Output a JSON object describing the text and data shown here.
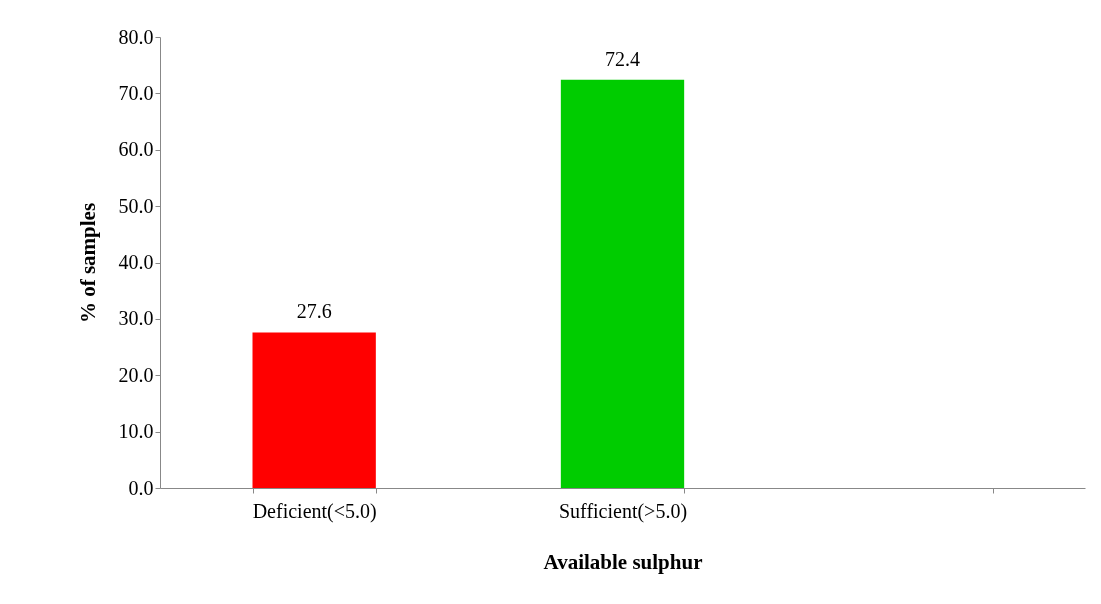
{
  "chart_data": {
    "type": "bar",
    "categories": [
      "Deficient(<5.0)",
      "Sufficient(>5.0)",
      null
    ],
    "values": [
      27.6,
      72.4,
      null
    ],
    "colors": [
      "#ff0000",
      "#00cc00",
      null
    ],
    "xlabel": "Available sulphur",
    "ylabel": "% of samples",
    "ylim": [
      0,
      80
    ],
    "yticks": [
      {
        "value": 0,
        "label": "0.0"
      },
      {
        "value": 10,
        "label": "10.0"
      },
      {
        "value": 20,
        "label": "20.0"
      },
      {
        "value": 30,
        "label": "30.0"
      },
      {
        "value": 40,
        "label": "40.0"
      },
      {
        "value": 50,
        "label": "50.0"
      },
      {
        "value": 60,
        "label": "60.0"
      },
      {
        "value": 70,
        "label": "70.0"
      },
      {
        "value": 80,
        "label": "80.0"
      }
    ],
    "data_labels": true,
    "grid": false
  }
}
